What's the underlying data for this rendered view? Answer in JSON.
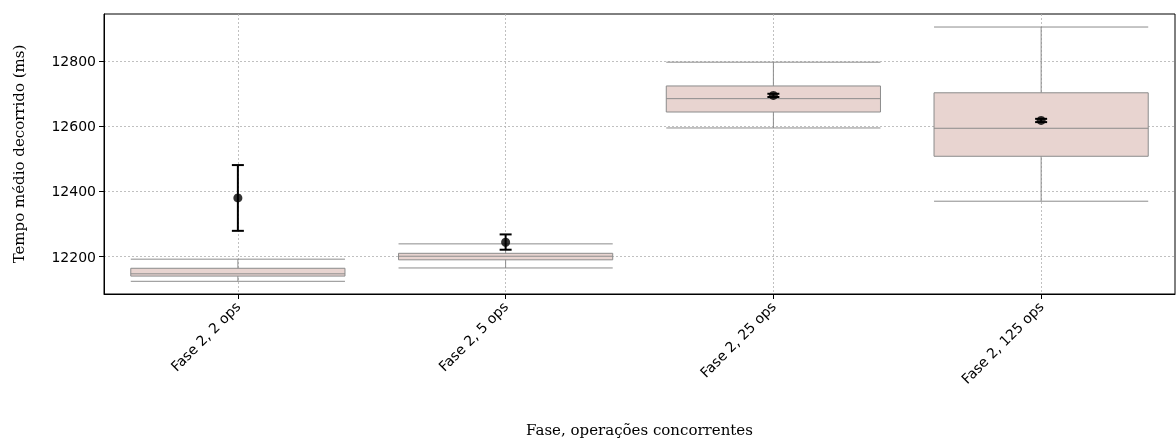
{
  "chart_data": {
    "type": "box",
    "xlabel": "Fase, operações concorrentes",
    "ylabel": "Tempo médio decorrido (ms)",
    "categories": [
      "Fase 2, 2 ops",
      "Fase 2, 5 ops",
      "Fase 2, 25 ops",
      "Fase 2, 125 ops"
    ],
    "ylim": [
      12085,
      12945
    ],
    "yticks": [
      12200,
      12400,
      12600,
      12800
    ],
    "grid": true,
    "series": [
      {
        "type": "box",
        "color": "#e8d4d0",
        "boxes": [
          {
            "low": 12124,
            "q1": 12140,
            "median": 12147,
            "q3": 12164,
            "high": 12192
          },
          {
            "low": 12165,
            "q1": 12190,
            "median": 12201,
            "q3": 12210,
            "high": 12239
          },
          {
            "low": 12595,
            "q1": 12644,
            "median": 12685,
            "q3": 12724,
            "high": 12797
          },
          {
            "low": 12370,
            "q1": 12508,
            "median": 12594,
            "q3": 12703,
            "high": 12905
          }
        ]
      },
      {
        "type": "scatter",
        "color": "#000000",
        "marker": "circle",
        "x": [
          "Fase 2, 2 ops",
          "Fase 2, 5 ops",
          "Fase 2, 25 ops",
          "Fase 2, 125 ops"
        ],
        "values": [
          12380,
          12244,
          12695,
          12618
        ],
        "errors": [
          [
            12279,
            12481
          ],
          [
            12221,
            12268
          ],
          [
            12690,
            12700
          ],
          [
            12613,
            12623
          ]
        ]
      }
    ]
  }
}
